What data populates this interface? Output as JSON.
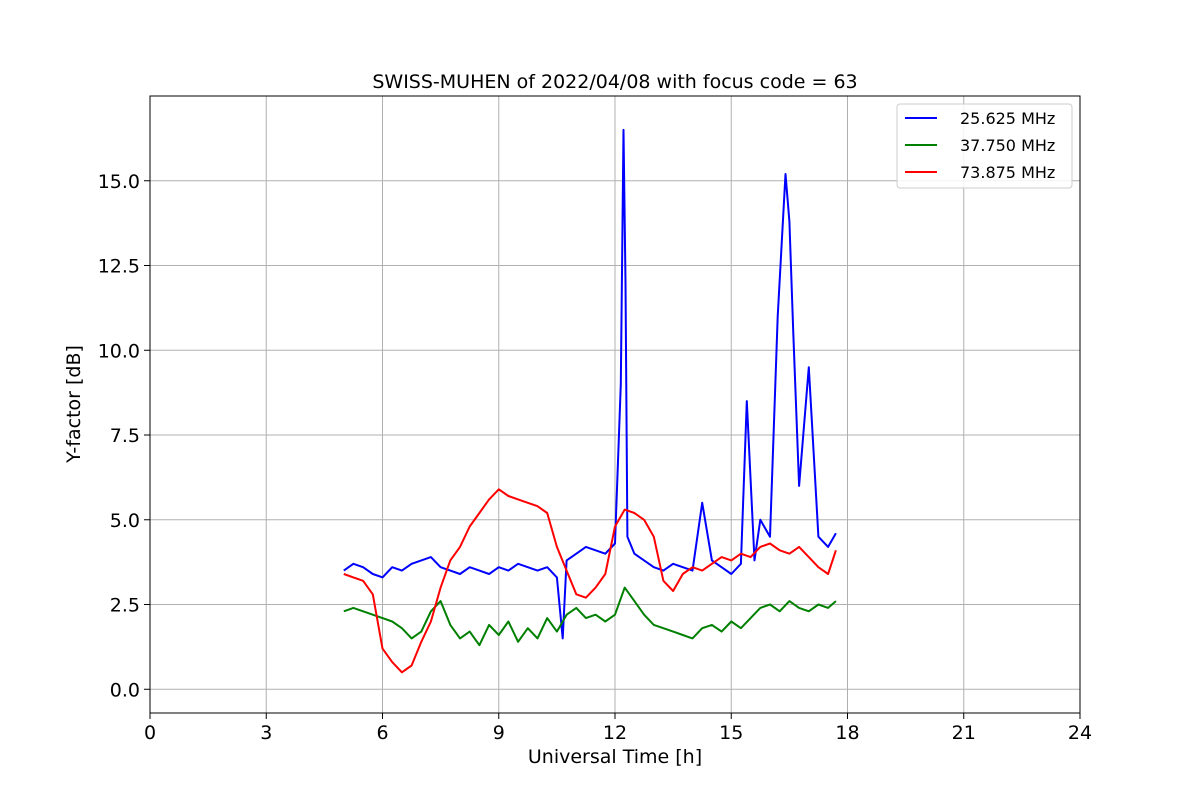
{
  "chart_data": {
    "type": "line",
    "title": "SWISS-MUHEN of 2022/04/08 with focus code = 63",
    "xlabel": "Universal Time [h]",
    "ylabel": "Y-factor [dB]",
    "xlim": [
      0,
      24
    ],
    "ylim": [
      -0.7,
      17.5
    ],
    "xticks": [
      0,
      3,
      6,
      9,
      12,
      15,
      18,
      21,
      24
    ],
    "xtick_labels": [
      "0",
      "3",
      "6",
      "9",
      "12",
      "15",
      "18",
      "21",
      "24"
    ],
    "yticks": [
      0,
      2.5,
      5,
      7.5,
      10,
      12.5,
      15
    ],
    "ytick_labels": [
      "0.0",
      "2.5",
      "5.0",
      "7.5",
      "10.0",
      "12.5",
      "15.0"
    ],
    "grid": true,
    "legend_position": "top-right",
    "series": [
      {
        "name": "25.625 MHz",
        "color": "#0000ff",
        "x": [
          5.0,
          5.25,
          5.5,
          5.75,
          6.0,
          6.25,
          6.5,
          6.75,
          7.0,
          7.25,
          7.5,
          7.75,
          8.0,
          8.25,
          8.5,
          8.75,
          9.0,
          9.25,
          9.5,
          9.75,
          10.0,
          10.25,
          10.5,
          10.65,
          10.75,
          11.0,
          11.25,
          11.5,
          11.75,
          12.0,
          12.15,
          12.22,
          12.27,
          12.32,
          12.5,
          12.75,
          13.0,
          13.25,
          13.5,
          13.75,
          14.0,
          14.25,
          14.5,
          14.75,
          15.0,
          15.25,
          15.4,
          15.6,
          15.75,
          16.0,
          16.2,
          16.4,
          16.5,
          16.6,
          16.75,
          17.0,
          17.25,
          17.5,
          17.7
        ],
        "y": [
          3.5,
          3.7,
          3.6,
          3.4,
          3.3,
          3.6,
          3.5,
          3.7,
          3.8,
          3.9,
          3.6,
          3.5,
          3.4,
          3.6,
          3.5,
          3.4,
          3.6,
          3.5,
          3.7,
          3.6,
          3.5,
          3.6,
          3.3,
          1.5,
          3.8,
          4.0,
          4.2,
          4.1,
          4.0,
          4.3,
          9.0,
          16.5,
          12.0,
          4.5,
          4.0,
          3.8,
          3.6,
          3.5,
          3.7,
          3.6,
          3.5,
          5.5,
          3.8,
          3.6,
          3.4,
          3.7,
          8.5,
          3.8,
          5.0,
          4.5,
          11.0,
          15.2,
          13.8,
          10.5,
          6.0,
          9.5,
          4.5,
          4.2,
          4.6
        ]
      },
      {
        "name": "37.750 MHz",
        "color": "#008000",
        "x": [
          5.0,
          5.25,
          5.5,
          5.75,
          6.0,
          6.25,
          6.5,
          6.75,
          7.0,
          7.25,
          7.5,
          7.75,
          8.0,
          8.25,
          8.5,
          8.75,
          9.0,
          9.25,
          9.5,
          9.75,
          10.0,
          10.25,
          10.5,
          10.75,
          11.0,
          11.25,
          11.5,
          11.75,
          12.0,
          12.25,
          12.5,
          12.75,
          13.0,
          13.25,
          13.5,
          13.75,
          14.0,
          14.25,
          14.5,
          14.75,
          15.0,
          15.25,
          15.5,
          15.75,
          16.0,
          16.25,
          16.5,
          16.75,
          17.0,
          17.25,
          17.5,
          17.7
        ],
        "y": [
          2.3,
          2.4,
          2.3,
          2.2,
          2.1,
          2.0,
          1.8,
          1.5,
          1.7,
          2.3,
          2.6,
          1.9,
          1.5,
          1.7,
          1.3,
          1.9,
          1.6,
          2.0,
          1.4,
          1.8,
          1.5,
          2.1,
          1.7,
          2.2,
          2.4,
          2.1,
          2.2,
          2.0,
          2.2,
          3.0,
          2.6,
          2.2,
          1.9,
          1.8,
          1.7,
          1.6,
          1.5,
          1.8,
          1.9,
          1.7,
          2.0,
          1.8,
          2.1,
          2.4,
          2.5,
          2.3,
          2.6,
          2.4,
          2.3,
          2.5,
          2.4,
          2.6
        ]
      },
      {
        "name": "73.875 MHz",
        "color": "#ff0000",
        "x": [
          5.0,
          5.25,
          5.5,
          5.75,
          6.0,
          6.25,
          6.5,
          6.75,
          7.0,
          7.25,
          7.5,
          7.75,
          8.0,
          8.25,
          8.5,
          8.75,
          9.0,
          9.25,
          9.5,
          9.75,
          10.0,
          10.25,
          10.5,
          10.75,
          11.0,
          11.25,
          11.5,
          11.75,
          12.0,
          12.25,
          12.5,
          12.75,
          13.0,
          13.25,
          13.5,
          13.75,
          14.0,
          14.25,
          14.5,
          14.75,
          15.0,
          15.25,
          15.5,
          15.75,
          16.0,
          16.25,
          16.5,
          16.75,
          17.0,
          17.25,
          17.5,
          17.7
        ],
        "y": [
          3.4,
          3.3,
          3.2,
          2.8,
          1.2,
          0.8,
          0.5,
          0.7,
          1.4,
          2.0,
          3.0,
          3.8,
          4.2,
          4.8,
          5.2,
          5.6,
          5.9,
          5.7,
          5.6,
          5.5,
          5.4,
          5.2,
          4.2,
          3.5,
          2.8,
          2.7,
          3.0,
          3.4,
          4.8,
          5.3,
          5.2,
          5.0,
          4.5,
          3.2,
          2.9,
          3.4,
          3.6,
          3.5,
          3.7,
          3.9,
          3.8,
          4.0,
          3.9,
          4.2,
          4.3,
          4.1,
          4.0,
          4.2,
          3.9,
          3.6,
          3.4,
          4.1
        ]
      }
    ]
  }
}
